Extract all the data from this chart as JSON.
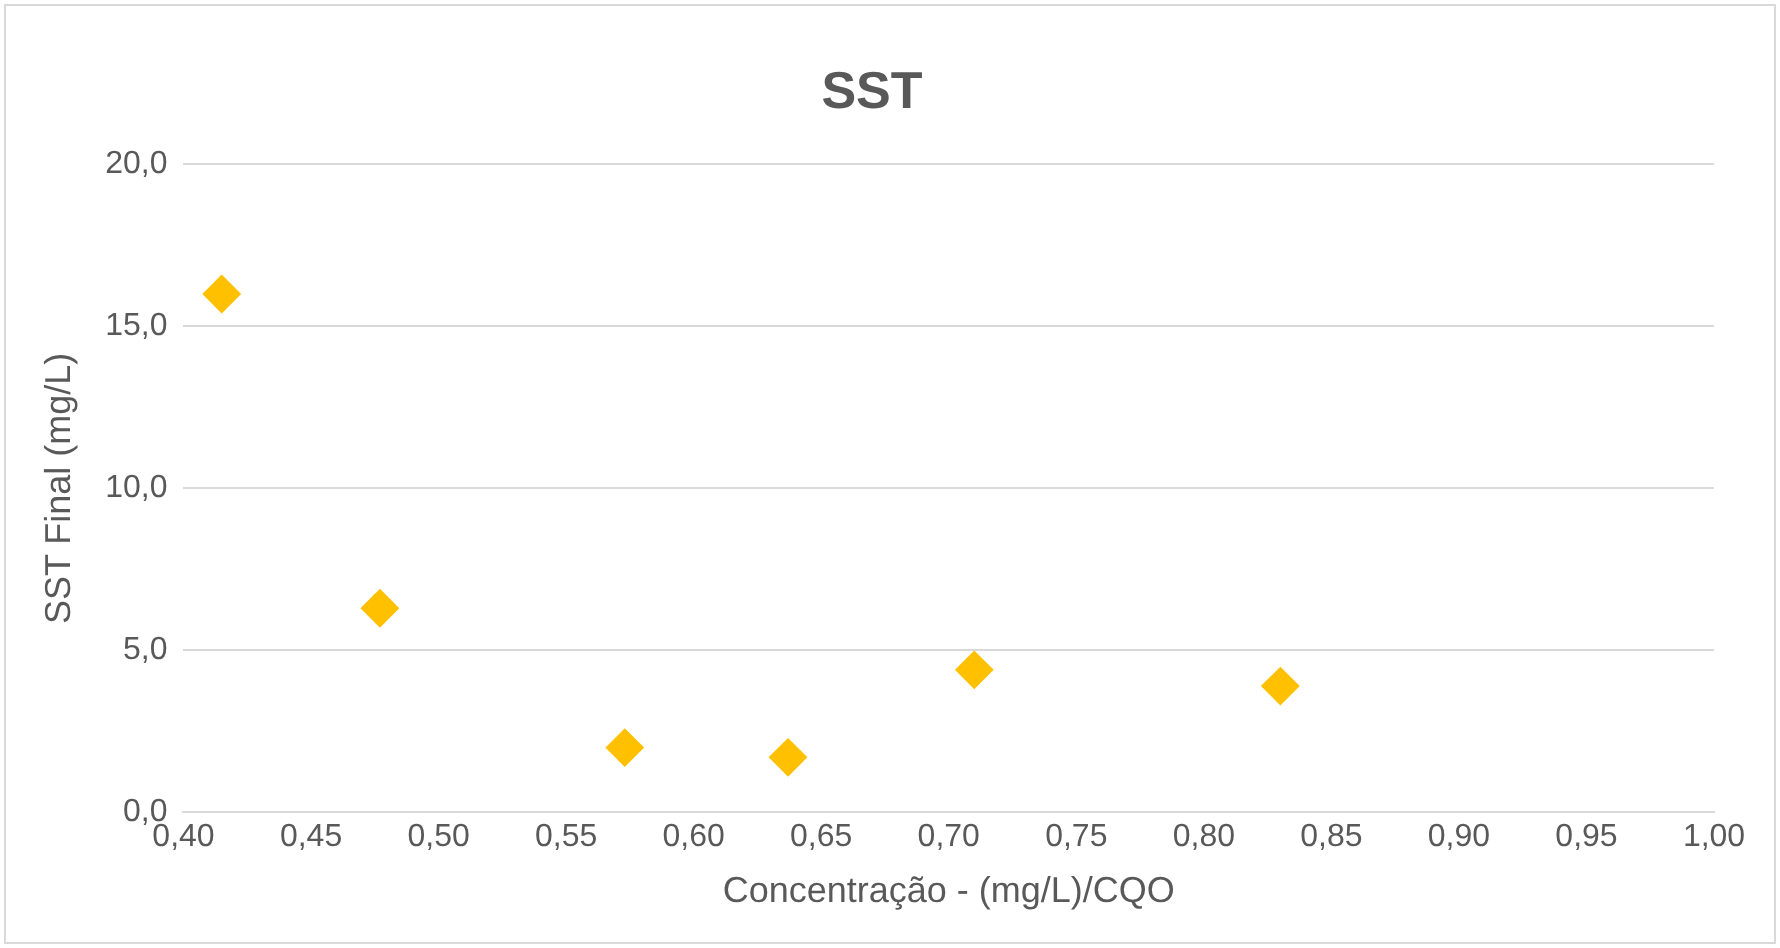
{
  "chart_data": {
    "type": "scatter",
    "title": "SST",
    "xlabel": "Concentração - (mg/L)/CQO",
    "ylabel": "SST Final (mg/L)",
    "x": [
      0.415,
      0.477,
      0.573,
      0.637,
      0.71,
      0.83
    ],
    "values": [
      16.0,
      6.3,
      2.0,
      1.7,
      4.4,
      3.9
    ],
    "color": "#ffc000",
    "marker": "diamond",
    "grid": "y",
    "legend": false,
    "xlim": [
      0.4,
      1.0
    ],
    "xticks": [
      {
        "value": 0.4,
        "label": "0,40"
      },
      {
        "value": 0.45,
        "label": "0,45"
      },
      {
        "value": 0.5,
        "label": "0,50"
      },
      {
        "value": 0.55,
        "label": "0,55"
      },
      {
        "value": 0.6,
        "label": "0,60"
      },
      {
        "value": 0.65,
        "label": "0,65"
      },
      {
        "value": 0.7,
        "label": "0,70"
      },
      {
        "value": 0.75,
        "label": "0,75"
      },
      {
        "value": 0.8,
        "label": "0,80"
      },
      {
        "value": 0.85,
        "label": "0,85"
      },
      {
        "value": 0.9,
        "label": "0,90"
      },
      {
        "value": 0.95,
        "label": "0,95"
      },
      {
        "value": 1.0,
        "label": "1,00"
      }
    ],
    "ylim": [
      0,
      20
    ],
    "yticks": [
      {
        "value": 0,
        "label": "0,0"
      },
      {
        "value": 5,
        "label": "5,0"
      },
      {
        "value": 10,
        "label": "10,0"
      },
      {
        "value": 15,
        "label": "15,0"
      },
      {
        "value": 20,
        "label": "20,0"
      }
    ]
  }
}
